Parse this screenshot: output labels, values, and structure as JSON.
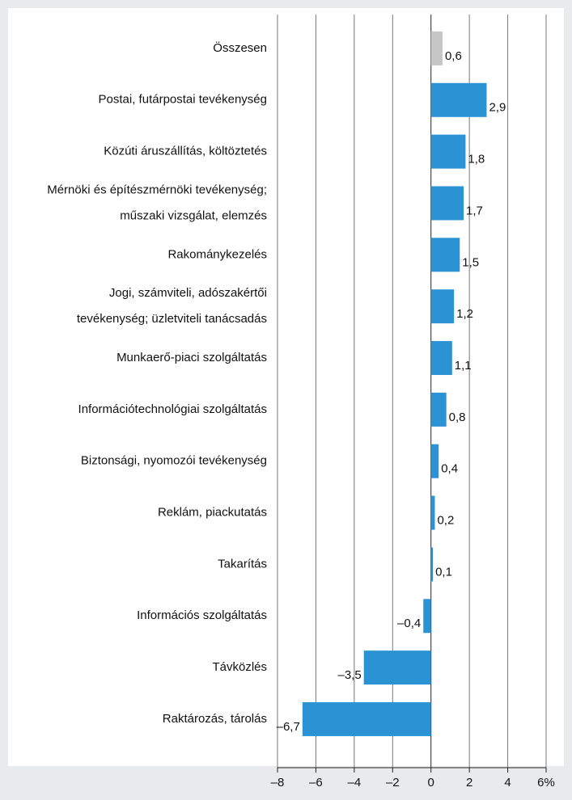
{
  "chart_data": {
    "type": "bar",
    "orientation": "horizontal",
    "categories": [
      "Összesen",
      "Postai, futárpostai tevékenység",
      "Közúti áruszállítás, költöztetés",
      "Mérnöki és építészmérnöki tevékenység;\nműszaki vizsgálat, elemzés",
      "Rakománykezelés",
      "Jogi, számviteli, adószakértői\ntevékenység; üzletviteli tanácsadás",
      "Munkaerő-piaci szolgáltatás",
      "Információtechnológiai szolgáltatás",
      "Biztonsági, nyomozói tevékenység",
      "Reklám, piackutatás",
      "Takarítás",
      "Információs szolgáltatás",
      "Távközlés",
      "Raktározás, tárolás"
    ],
    "values": [
      0.6,
      2.9,
      1.8,
      1.7,
      1.5,
      1.2,
      1.1,
      0.8,
      0.4,
      0.2,
      0.1,
      -0.4,
      -3.5,
      -6.7
    ],
    "value_labels": [
      "0,6",
      "2,9",
      "1,8",
      "1,7",
      "1,5",
      "1,2",
      "1,1",
      "0,8",
      "0,4",
      "0,2",
      "0,1",
      "–0,4",
      "–3,5",
      "–6,7"
    ],
    "colors": [
      "#c6c6c6",
      "#2b93d4",
      "#2b93d4",
      "#2b93d4",
      "#2b93d4",
      "#2b93d4",
      "#2b93d4",
      "#2b93d4",
      "#2b93d4",
      "#2b93d4",
      "#2b93d4",
      "#2b93d4",
      "#2b93d4",
      "#2b93d4"
    ],
    "xlim": [
      -8,
      6
    ],
    "xticks": [
      {
        "value": -8,
        "label": "–8"
      },
      {
        "value": -6,
        "label": "–6"
      },
      {
        "value": -4,
        "label": "–4"
      },
      {
        "value": -2,
        "label": "–2"
      },
      0,
      2,
      4,
      {
        "value": 6,
        "label": "6%"
      }
    ],
    "grid": true
  }
}
